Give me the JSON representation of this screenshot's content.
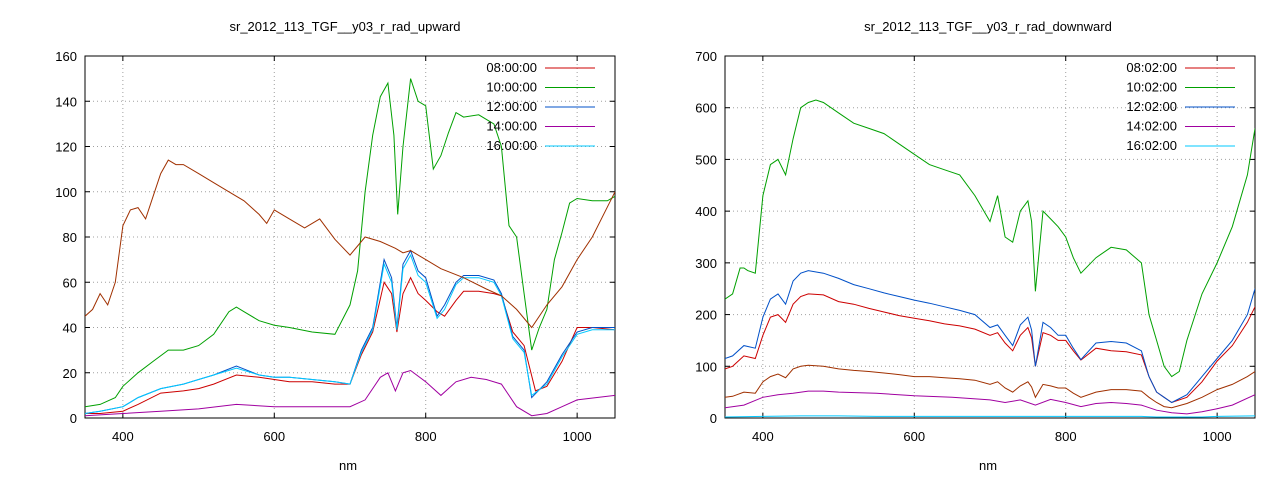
{
  "chart_data": [
    {
      "type": "line",
      "title": "sr_2012_113_TGF__y03_r_rad_upward",
      "xlabel": "nm",
      "ylabel": "",
      "xlim": [
        350,
        1050
      ],
      "ylim": [
        0,
        160
      ],
      "xticks": [
        400,
        600,
        800,
        1000
      ],
      "yticks": [
        0,
        20,
        40,
        60,
        80,
        100,
        120,
        140,
        160
      ],
      "grid": true,
      "legend_position": "top-right",
      "series": [
        {
          "name": "08:00:00",
          "color": "#cc0000",
          "x": [
            350,
            370,
            400,
            420,
            450,
            480,
            500,
            520,
            550,
            580,
            600,
            620,
            650,
            680,
            700,
            715,
            730,
            745,
            755,
            762,
            770,
            780,
            790,
            800,
            815,
            825,
            840,
            850,
            870,
            890,
            900,
            915,
            930,
            945,
            960,
            980,
            1000,
            1020,
            1050
          ],
          "y": [
            2,
            2,
            3,
            6,
            11,
            12,
            13,
            15,
            19,
            18,
            17,
            16,
            16,
            15,
            15,
            28,
            38,
            60,
            55,
            38,
            55,
            62,
            55,
            52,
            47,
            45,
            52,
            56,
            56,
            55,
            54,
            38,
            32,
            12,
            14,
            25,
            40,
            40,
            39
          ]
        },
        {
          "name": "10:00:00",
          "color": "#00a000",
          "x": [
            350,
            370,
            390,
            400,
            420,
            440,
            460,
            480,
            500,
            520,
            540,
            550,
            560,
            580,
            600,
            620,
            650,
            680,
            700,
            710,
            720,
            730,
            740,
            750,
            758,
            763,
            770,
            780,
            790,
            800,
            810,
            820,
            830,
            840,
            850,
            870,
            890,
            900,
            910,
            920,
            930,
            940,
            950,
            960,
            970,
            980,
            990,
            1000,
            1020,
            1040,
            1050
          ],
          "y": [
            5,
            6,
            9,
            14,
            20,
            25,
            30,
            30,
            32,
            37,
            47,
            49,
            47,
            43,
            41,
            40,
            38,
            37,
            50,
            65,
            100,
            125,
            142,
            148,
            125,
            90,
            120,
            150,
            140,
            138,
            110,
            116,
            126,
            135,
            133,
            134,
            130,
            120,
            85,
            80,
            55,
            30,
            40,
            48,
            70,
            82,
            95,
            97,
            96,
            96,
            98
          ]
        },
        {
          "name": "12:00:00",
          "color": "#0050c8",
          "x": [
            350,
            370,
            400,
            420,
            450,
            480,
            500,
            520,
            550,
            580,
            600,
            620,
            650,
            680,
            700,
            715,
            730,
            745,
            755,
            762,
            770,
            780,
            790,
            800,
            815,
            825,
            840,
            850,
            870,
            890,
            900,
            915,
            930,
            940,
            960,
            980,
            1000,
            1020,
            1050
          ],
          "y": [
            2,
            3,
            5,
            9,
            13,
            15,
            17,
            19,
            23,
            19,
            18,
            18,
            17,
            16,
            15,
            30,
            40,
            70,
            62,
            40,
            68,
            74,
            65,
            62,
            45,
            50,
            60,
            63,
            63,
            61,
            55,
            36,
            30,
            9,
            16,
            28,
            38,
            40,
            40
          ]
        },
        {
          "name": "14:00:00",
          "color": "#a000a0",
          "x": [
            350,
            400,
            450,
            500,
            550,
            600,
            650,
            700,
            720,
            740,
            750,
            760,
            770,
            780,
            800,
            820,
            840,
            860,
            880,
            900,
            920,
            940,
            960,
            980,
            1000,
            1050
          ],
          "y": [
            1,
            2,
            3,
            4,
            6,
            5,
            5,
            5,
            8,
            18,
            20,
            12,
            20,
            21,
            16,
            10,
            16,
            18,
            17,
            15,
            5,
            1,
            2,
            5,
            8,
            10
          ]
        },
        {
          "name": "16:00:00",
          "color": "#00c8ff",
          "x": [
            350,
            370,
            400,
            420,
            450,
            480,
            500,
            520,
            550,
            580,
            600,
            620,
            650,
            680,
            700,
            715,
            730,
            745,
            755,
            762,
            770,
            780,
            790,
            800,
            815,
            825,
            840,
            850,
            870,
            890,
            900,
            915,
            930,
            940,
            960,
            980,
            1000,
            1020,
            1050
          ],
          "y": [
            2,
            3,
            5,
            9,
            13,
            15,
            17,
            19,
            22,
            19,
            18,
            18,
            17,
            16,
            15,
            29,
            39,
            68,
            60,
            39,
            66,
            72,
            63,
            60,
            44,
            48,
            59,
            62,
            62,
            60,
            54,
            35,
            29,
            10,
            15,
            27,
            37,
            39,
            39
          ]
        },
        {
          "name": "",
          "color": "#a03000",
          "x": [
            350,
            360,
            370,
            380,
            390,
            400,
            410,
            420,
            430,
            440,
            450,
            460,
            470,
            480,
            500,
            520,
            540,
            560,
            580,
            590,
            600,
            620,
            640,
            660,
            680,
            700,
            720,
            740,
            760,
            770,
            780,
            800,
            820,
            850,
            880,
            900,
            920,
            940,
            960,
            980,
            1000,
            1020,
            1050
          ],
          "y": [
            45,
            48,
            55,
            50,
            60,
            85,
            92,
            93,
            88,
            98,
            108,
            114,
            112,
            112,
            108,
            104,
            100,
            96,
            90,
            86,
            92,
            88,
            84,
            88,
            79,
            72,
            80,
            78,
            75,
            73,
            74,
            70,
            66,
            62,
            57,
            54,
            48,
            40,
            50,
            58,
            70,
            80,
            100
          ]
        }
      ]
    },
    {
      "type": "line",
      "title": "sr_2012_113_TGF__y03_r_rad_downward",
      "xlabel": "nm",
      "ylabel": "",
      "xlim": [
        350,
        1050
      ],
      "ylim": [
        0,
        700
      ],
      "xticks": [
        400,
        600,
        800,
        1000
      ],
      "yticks": [
        0,
        100,
        200,
        300,
        400,
        500,
        600,
        700
      ],
      "grid": true,
      "legend_position": "top-right",
      "series": [
        {
          "name": "08:02:00",
          "color": "#cc0000",
          "x": [
            350,
            360,
            375,
            390,
            400,
            410,
            420,
            430,
            440,
            450,
            460,
            480,
            500,
            520,
            540,
            560,
            580,
            600,
            620,
            640,
            660,
            680,
            700,
            710,
            720,
            730,
            740,
            750,
            755,
            760,
            770,
            780,
            790,
            800,
            810,
            820,
            840,
            860,
            880,
            900,
            910,
            920,
            930,
            940,
            960,
            980,
            1000,
            1020,
            1040,
            1050
          ],
          "y": [
            95,
            100,
            120,
            115,
            160,
            195,
            200,
            185,
            220,
            235,
            240,
            238,
            225,
            220,
            212,
            205,
            198,
            193,
            188,
            182,
            178,
            172,
            160,
            165,
            145,
            130,
            160,
            175,
            155,
            100,
            165,
            160,
            150,
            150,
            130,
            112,
            135,
            130,
            128,
            122,
            80,
            50,
            40,
            30,
            40,
            70,
            110,
            140,
            185,
            215
          ]
        },
        {
          "name": "10:02:00",
          "color": "#00a000",
          "x": [
            350,
            360,
            370,
            375,
            380,
            390,
            400,
            410,
            420,
            430,
            440,
            450,
            460,
            470,
            480,
            490,
            500,
            520,
            540,
            560,
            580,
            600,
            620,
            640,
            660,
            680,
            700,
            710,
            720,
            730,
            740,
            750,
            755,
            760,
            770,
            780,
            790,
            800,
            810,
            820,
            840,
            860,
            880,
            900,
            910,
            920,
            930,
            940,
            950,
            960,
            980,
            1000,
            1020,
            1040,
            1050
          ],
          "y": [
            230,
            240,
            290,
            290,
            285,
            280,
            430,
            490,
            500,
            470,
            540,
            600,
            610,
            615,
            610,
            600,
            590,
            570,
            560,
            550,
            530,
            510,
            490,
            480,
            470,
            430,
            380,
            430,
            350,
            340,
            400,
            420,
            380,
            245,
            400,
            385,
            370,
            350,
            310,
            280,
            310,
            330,
            325,
            300,
            200,
            150,
            100,
            80,
            90,
            150,
            240,
            300,
            370,
            470,
            560
          ]
        },
        {
          "name": "12:02:00",
          "color": "#0050c8",
          "x": [
            350,
            360,
            375,
            390,
            400,
            410,
            420,
            430,
            440,
            450,
            460,
            480,
            500,
            520,
            540,
            560,
            580,
            600,
            620,
            640,
            660,
            680,
            700,
            710,
            720,
            730,
            740,
            750,
            755,
            760,
            770,
            780,
            790,
            800,
            810,
            820,
            840,
            860,
            880,
            900,
            910,
            920,
            930,
            940,
            960,
            980,
            1000,
            1020,
            1040,
            1050
          ],
          "y": [
            115,
            120,
            140,
            135,
            195,
            230,
            240,
            220,
            265,
            280,
            285,
            280,
            270,
            258,
            250,
            242,
            235,
            228,
            222,
            215,
            208,
            200,
            175,
            180,
            160,
            140,
            180,
            195,
            170,
            100,
            185,
            175,
            160,
            160,
            135,
            113,
            145,
            148,
            145,
            130,
            80,
            50,
            40,
            30,
            45,
            80,
            115,
            150,
            200,
            250
          ]
        },
        {
          "name": "14:02:00",
          "color": "#a000a0",
          "x": [
            350,
            375,
            400,
            420,
            440,
            460,
            480,
            500,
            550,
            600,
            650,
            700,
            720,
            740,
            760,
            780,
            800,
            820,
            840,
            860,
            880,
            900,
            920,
            940,
            960,
            980,
            1000,
            1020,
            1050
          ],
          "y": [
            20,
            25,
            40,
            45,
            48,
            52,
            52,
            50,
            48,
            43,
            40,
            35,
            30,
            35,
            25,
            36,
            30,
            22,
            28,
            30,
            28,
            25,
            15,
            10,
            8,
            12,
            18,
            25,
            45
          ]
        },
        {
          "name": "16:02:00",
          "color": "#00c8ff",
          "x": [
            350,
            400,
            450,
            500,
            550,
            600,
            650,
            700,
            750,
            800,
            850,
            900,
            920,
            940,
            960,
            980,
            1000,
            1050
          ],
          "y": [
            2,
            3,
            4,
            4,
            3,
            3,
            3,
            3,
            3,
            3,
            3,
            3,
            2,
            2,
            2,
            2,
            3,
            4
          ]
        },
        {
          "name": "",
          "color": "#a03000",
          "x": [
            350,
            360,
            375,
            390,
            400,
            410,
            420,
            430,
            440,
            450,
            460,
            480,
            500,
            520,
            540,
            560,
            580,
            600,
            620,
            640,
            660,
            680,
            700,
            710,
            720,
            730,
            740,
            750,
            755,
            760,
            770,
            780,
            790,
            800,
            810,
            820,
            840,
            860,
            880,
            900,
            910,
            920,
            930,
            940,
            960,
            980,
            1000,
            1020,
            1040,
            1050
          ],
          "y": [
            40,
            42,
            50,
            48,
            70,
            80,
            85,
            78,
            95,
            100,
            102,
            100,
            95,
            92,
            90,
            87,
            84,
            80,
            80,
            78,
            76,
            73,
            65,
            70,
            58,
            50,
            62,
            70,
            60,
            40,
            65,
            62,
            58,
            58,
            48,
            40,
            50,
            55,
            55,
            52,
            40,
            30,
            22,
            20,
            28,
            40,
            55,
            65,
            80,
            90
          ]
        }
      ]
    }
  ]
}
